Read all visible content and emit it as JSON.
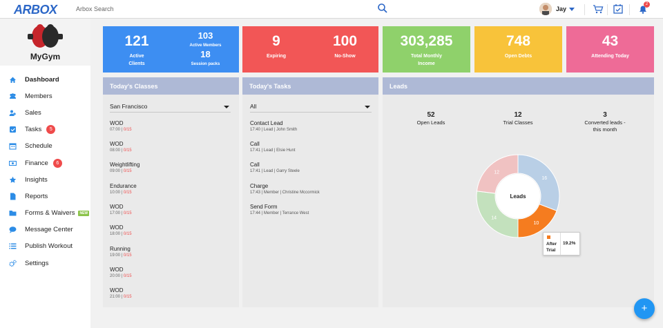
{
  "brand": {
    "logo_text": "ARBOX"
  },
  "search": {
    "placeholder": "Arbox Search"
  },
  "user": {
    "name": "Jay"
  },
  "notifications": {
    "count": "2"
  },
  "gym": {
    "name": "MyGym"
  },
  "sidebar": {
    "items": [
      {
        "label": "Dashboard",
        "icon": "home-icon"
      },
      {
        "label": "Members",
        "icon": "members-icon"
      },
      {
        "label": "Sales",
        "icon": "sales-icon"
      },
      {
        "label": "Tasks",
        "icon": "tasks-icon",
        "badge": "5"
      },
      {
        "label": "Schedule",
        "icon": "calendar-icon"
      },
      {
        "label": "Finance",
        "icon": "finance-icon",
        "badge": "6"
      },
      {
        "label": "Insights",
        "icon": "star-icon"
      },
      {
        "label": "Reports",
        "icon": "report-icon"
      },
      {
        "label": "Forms & Waivers",
        "icon": "folder-icon",
        "tag": "NEW"
      },
      {
        "label": "Message Center",
        "icon": "chat-icon"
      },
      {
        "label": "Publish Workout",
        "icon": "list-icon"
      },
      {
        "label": "Settings",
        "icon": "gears-icon"
      }
    ]
  },
  "stats": {
    "active_clients": {
      "value": "121",
      "label_line1": "Active",
      "label_line2": "Clients"
    },
    "active_members": {
      "value": "103",
      "label": "Active Members"
    },
    "session_packs": {
      "value": "18",
      "label": "Session packs"
    },
    "expiring": {
      "value": "9",
      "label": "Expiring"
    },
    "no_show": {
      "value": "100",
      "label": "No-Show"
    },
    "monthly_income": {
      "value": "303,285",
      "label_line1": "Total Monthly",
      "label_line2": "Income"
    },
    "open_debts": {
      "value": "748",
      "label": "Open Debts"
    },
    "attending_today": {
      "value": "43",
      "label": "Attending Today"
    }
  },
  "colors": {
    "blue": "#3d8ef2",
    "red": "#f25656",
    "green": "#8fd16b",
    "yellow": "#f8c33a",
    "pink": "#ee6b97",
    "panel_head": "#aeb9d6"
  },
  "classes": {
    "title": "Today's Classes",
    "location": "San Francisco",
    "items": [
      {
        "name": "WOD",
        "time": "07:00 |",
        "count": "0/15"
      },
      {
        "name": "WOD",
        "time": "08:00 |",
        "count": "0/15"
      },
      {
        "name": "Weightlifting",
        "time": "09:00 |",
        "count": "0/15"
      },
      {
        "name": "Endurance",
        "time": "10:00 |",
        "count": "0/15"
      },
      {
        "name": "WOD",
        "time": "17:00 |",
        "count": "0/15"
      },
      {
        "name": "WOD",
        "time": "18:00 |",
        "count": "0/15"
      },
      {
        "name": "Running",
        "time": "19:00 |",
        "count": "0/15"
      },
      {
        "name": "WOD",
        "time": "20:00 |",
        "count": "0/15"
      },
      {
        "name": "WOD",
        "time": "21:00 |",
        "count": "0/15"
      }
    ]
  },
  "tasks": {
    "title": "Today's Tasks",
    "filter": "All",
    "items": [
      {
        "name": "Contact Lead",
        "meta": "17:40 | Lead | John Smith"
      },
      {
        "name": "Call",
        "meta": "17:41 | Lead | Elsie Hunt"
      },
      {
        "name": "Call",
        "meta": "17:41 | Lead | Garry Steele"
      },
      {
        "name": "Charge",
        "meta": "17:43 | Member | Christine Mccormick"
      },
      {
        "name": "Send Form",
        "meta": "17:44 | Member | Terrance West"
      }
    ]
  },
  "leads": {
    "title": "Leads",
    "open_leads": {
      "value": "52",
      "label": "Open Leads"
    },
    "trial_classes": {
      "value": "12",
      "label": "Trial Classes"
    },
    "converted": {
      "value": "3",
      "label_line1": "Converted leads -",
      "label_line2": "this month"
    },
    "tooltip": {
      "label_line1": "After",
      "label_line2": "Trial",
      "value": "19.2%"
    }
  },
  "chart_data": {
    "type": "pie",
    "title": "Leads",
    "slices": [
      {
        "label": "",
        "value": 16,
        "color": "#b9cfe6"
      },
      {
        "label": "After Trial",
        "value": 10,
        "color": "#f57c1f"
      },
      {
        "label": "",
        "value": 14,
        "color": "#c3e1bd"
      },
      {
        "label": "",
        "value": 12,
        "color": "#f0c2c2"
      }
    ]
  }
}
